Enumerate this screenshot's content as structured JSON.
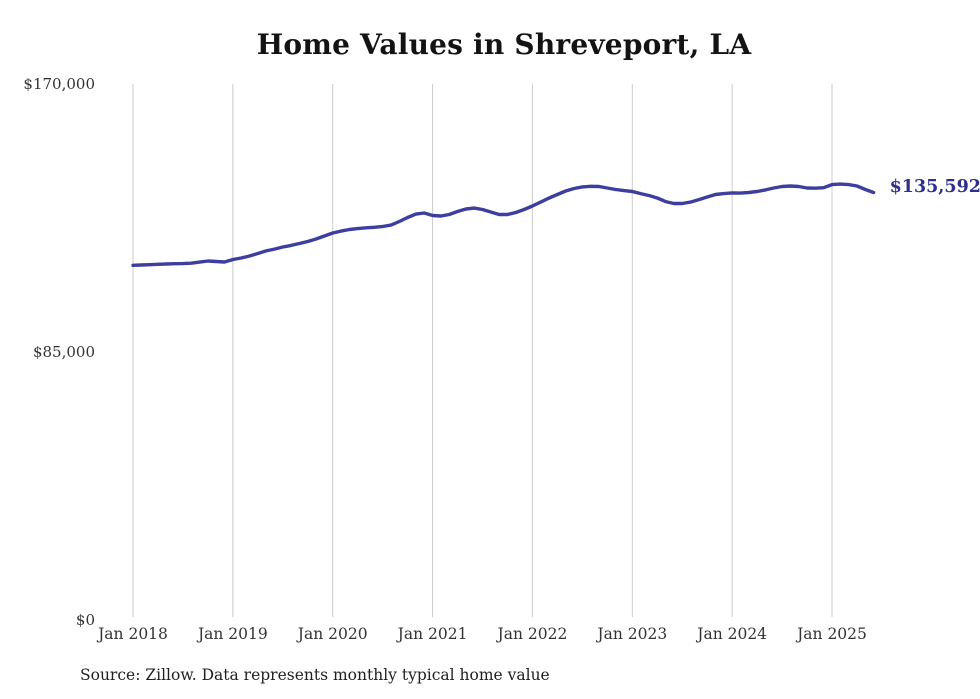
{
  "title": "Home Values in Shreveport, LA",
  "end_label": "$135,592",
  "source_note": "Source: Zillow. Data represents monthly typical home value",
  "colors": {
    "background": "#ffffff",
    "title": "#131313",
    "line": "#3e3e9f",
    "end_label": "#2f2f8e",
    "gridline": "#cbcbcb",
    "tick_text": "#333333",
    "source_text": "#1f1f1f"
  },
  "chart_data": {
    "type": "line",
    "title": "Home Values in Shreveport, LA",
    "xlabel": "",
    "ylabel": "",
    "ylim": [
      0,
      170000
    ],
    "grid": "vertical-only",
    "legend": "none",
    "x_tick_labels": [
      "Jan 2018",
      "Jan 2019",
      "Jan 2020",
      "Jan 2021",
      "Jan 2022",
      "Jan 2023",
      "Jan 2024",
      "Jan 2025"
    ],
    "y_ticks": [
      {
        "label": "$170,000",
        "value": 170000
      },
      {
        "label": "$85,000",
        "value": 85000
      },
      {
        "label": "$0",
        "value": 0
      }
    ],
    "start_month": "Jan 2018",
    "end_month": "Jun 2025",
    "frequency": "monthly",
    "last_value": 135592,
    "last_value_label": "$135,592",
    "series": [
      {
        "name": "Typical home value",
        "values": [
          112500,
          112600,
          112700,
          112800,
          112900,
          113000,
          113050,
          113150,
          113500,
          113850,
          113700,
          113550,
          114350,
          114800,
          115450,
          116250,
          117050,
          117650,
          118300,
          118800,
          119400,
          120050,
          120850,
          121800,
          122750,
          123350,
          123850,
          124150,
          124400,
          124550,
          124800,
          125250,
          126400,
          127650,
          128750,
          129100,
          128300,
          128150,
          128600,
          129550,
          130350,
          130650,
          130200,
          129400,
          128600,
          128600,
          129250,
          130200,
          131300,
          132550,
          133850,
          134950,
          136050,
          136850,
          137350,
          137550,
          137500,
          137000,
          136550,
          136200,
          135900,
          135250,
          134650,
          133850,
          132700,
          132100,
          132100,
          132550,
          133350,
          134150,
          134950,
          135250,
          135450,
          135400,
          135600,
          135900,
          136400,
          137000,
          137500,
          137650,
          137500,
          137000,
          136950,
          137100,
          138100,
          138250,
          138100,
          137650,
          136550,
          135592
        ]
      }
    ]
  }
}
